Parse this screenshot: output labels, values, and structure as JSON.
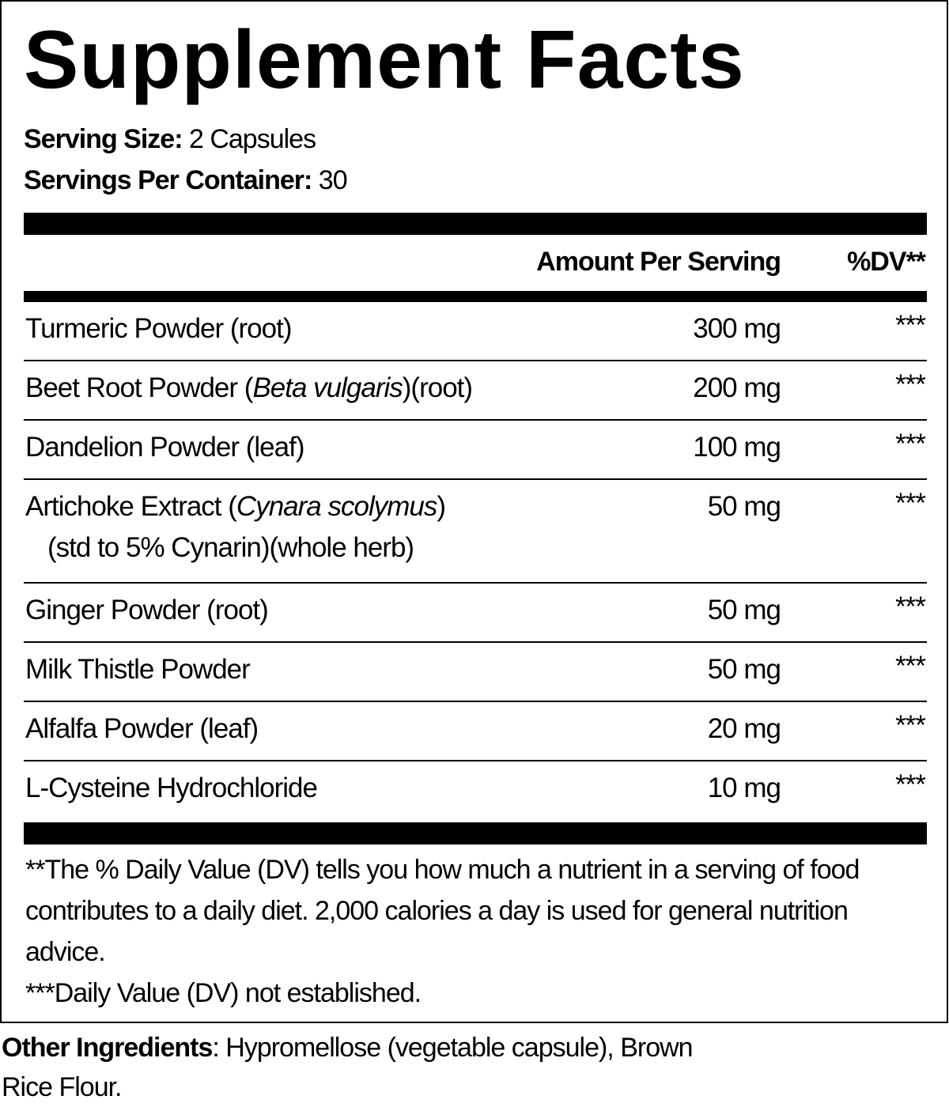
{
  "title": "Supplement Facts",
  "serving": {
    "size_label": "Serving Size:",
    "size_value": "2 Capsules",
    "per_container_label": "Servings Per Container:",
    "per_container_value": "30"
  },
  "header": {
    "amount": "Amount Per Serving",
    "dv": "%DV**"
  },
  "rows": [
    {
      "name": "Turmeric Powder (root)",
      "amount": "300 mg",
      "dv": "***"
    },
    {
      "name": "Beet Root Powder (",
      "italic": "Beta vulgaris",
      "rest": ")(root)",
      "amount": "200 mg",
      "dv": "***"
    },
    {
      "name": "Dandelion Powder (leaf)",
      "amount": "100 mg",
      "dv": "***"
    },
    {
      "name": "Artichoke Extract (",
      "italic": "Cynara scolymus",
      "rest": ")",
      "line2": "(std to 5% Cynarin)(whole herb)",
      "amount": "50 mg",
      "dv": "***"
    },
    {
      "name": "Ginger Powder (root)",
      "amount": "50 mg",
      "dv": "***"
    },
    {
      "name": "Milk Thistle Powder",
      "amount": "50 mg",
      "dv": "***"
    },
    {
      "name": "Alfalfa Powder (leaf)",
      "amount": "20 mg",
      "dv": "***"
    },
    {
      "name": "L-Cysteine Hydrochloride",
      "amount": "10 mg",
      "dv": "***"
    }
  ],
  "footnotes": [
    "**The % Daily Value (DV) tells you how much a nutrient in a serving of food contributes to a daily diet. 2,000 calories a day is used for general nutrition advice.",
    "***Daily Value (DV) not established."
  ],
  "other_ingredients": {
    "label": "Other Ingredients",
    "text": ": Hypromellose (vegetable capsule), Brown Rice Flour."
  }
}
